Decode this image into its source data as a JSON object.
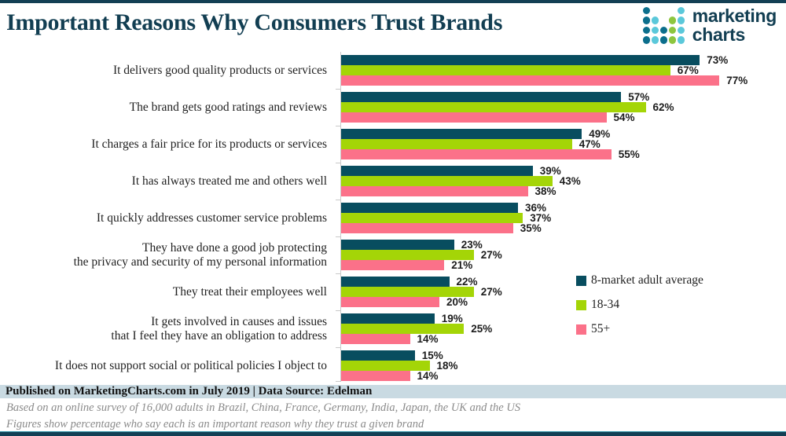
{
  "page": {
    "title": "Important Reasons Why Consumers Trust Brands",
    "accent_color": "#133f54"
  },
  "logo": {
    "icon": "marketingcharts-dots-logo",
    "text_line1": "marketing",
    "text_line2": "charts",
    "dot_pattern": [
      [
        1,
        0,
        0,
        0,
        2
      ],
      [
        1,
        2,
        0,
        3,
        2
      ],
      [
        1,
        2,
        1,
        3,
        2
      ],
      [
        1,
        2,
        1,
        3,
        2
      ]
    ],
    "dot_colors": {
      "1": "#0b6e8c",
      "2": "#5bc8da",
      "3": "#8dc63f"
    }
  },
  "chart_data": {
    "type": "bar",
    "orientation": "horizontal",
    "unit": "%",
    "xlim": [
      0,
      80
    ],
    "grid": false,
    "value_labels": true,
    "legend_position": "right-middle",
    "categories": [
      "It delivers good quality products or services",
      "The brand gets good ratings and reviews",
      "It charges a fair price for its products or services",
      "It has always treated me and others well",
      "It quickly addresses customer service problems",
      "They have done a good job protecting\nthe privacy and security of my personal information",
      "They treat their employees well",
      "It gets involved in causes and issues\nthat I feel they have an obligation to address",
      "It does not support social or political policies I object to"
    ],
    "series": [
      {
        "name": "8-market adult average",
        "color": "#084d5f",
        "values": [
          73,
          57,
          49,
          39,
          36,
          23,
          22,
          19,
          15
        ]
      },
      {
        "name": "18-34",
        "color": "#a4d507",
        "values": [
          67,
          62,
          47,
          43,
          37,
          27,
          27,
          25,
          18
        ]
      },
      {
        "name": "55+",
        "color": "#fb7189",
        "values": [
          77,
          54,
          55,
          38,
          35,
          21,
          20,
          14,
          14
        ]
      }
    ]
  },
  "footer": {
    "published": "Published on MarketingCharts.com in July 2019 | Data Source: Edelman",
    "note1": "Based on an online survey of 16,000 adults in Brazil, China, France, Germany, India, Japan, the UK and the US",
    "note2": "Figures show percentage who say each is an important reason why they trust a given brand"
  }
}
